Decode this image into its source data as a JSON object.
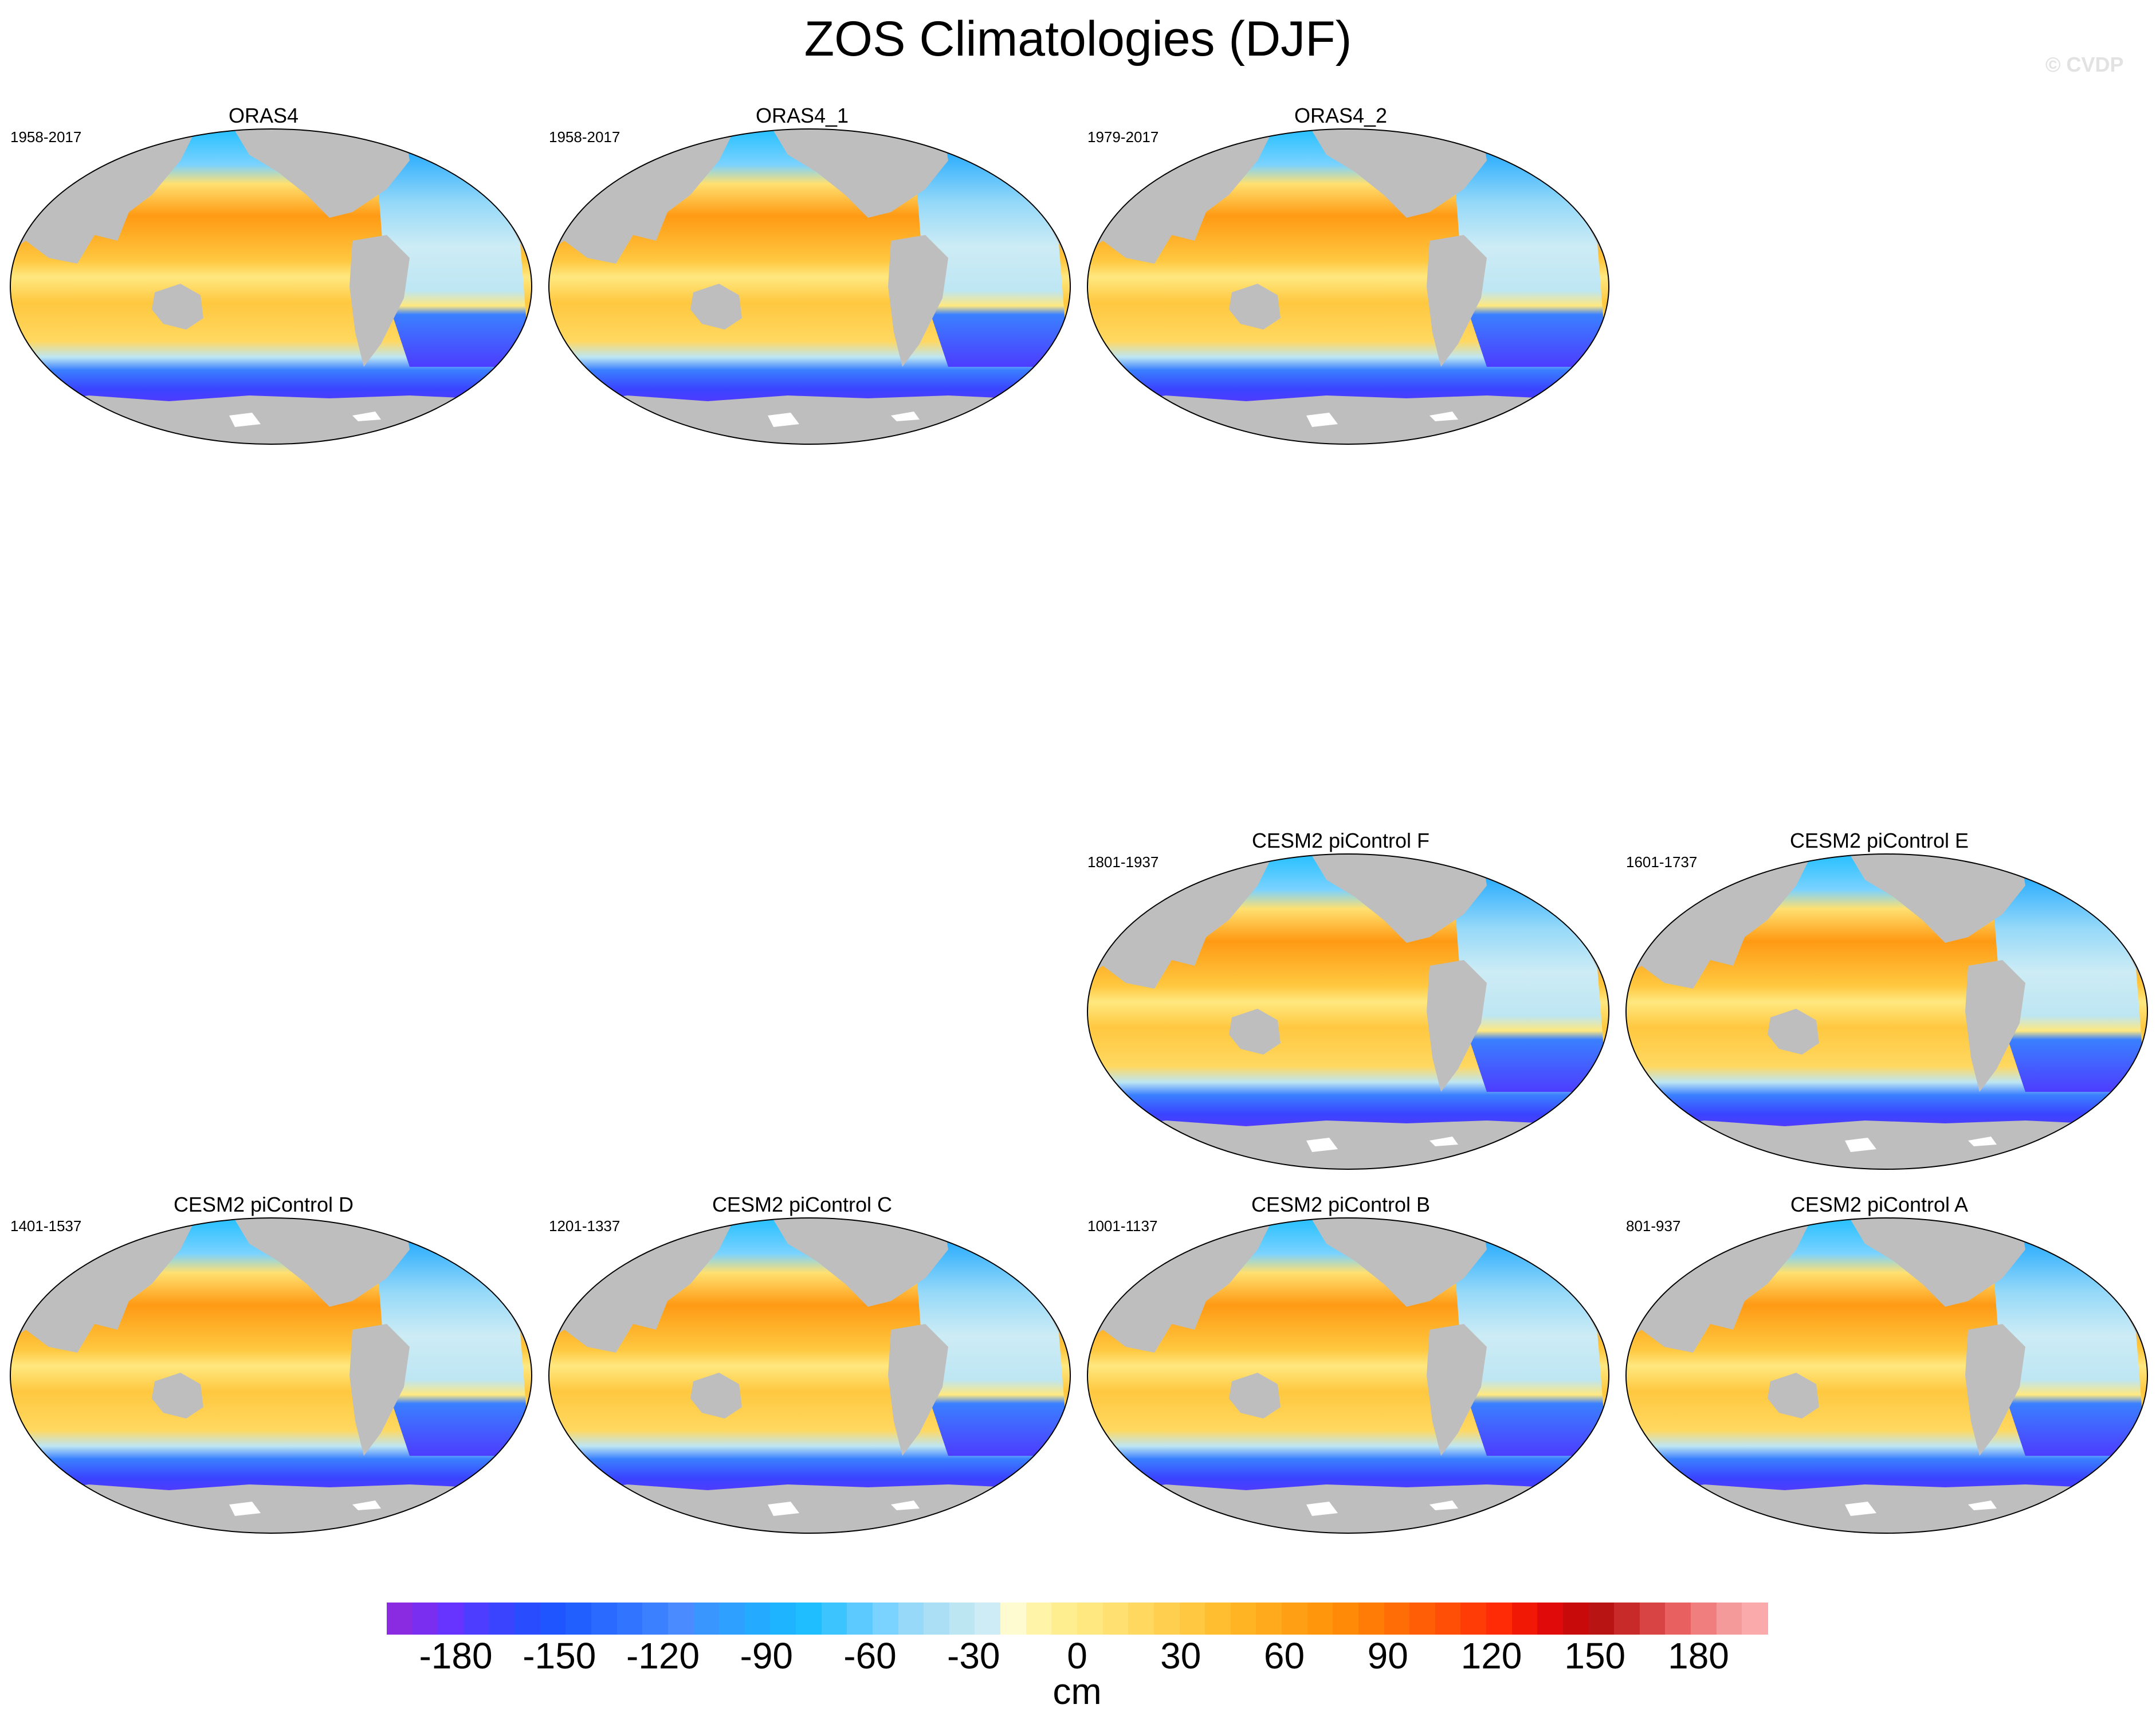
{
  "title": "ZOS Climatologies (DJF)",
  "credit": "© CVDP",
  "panels": [
    {
      "name": "ORAS4",
      "years": "1958-2017"
    },
    {
      "name": "ORAS4_1",
      "years": "1958-2017"
    },
    {
      "name": "ORAS4_2",
      "years": "1979-2017"
    },
    {
      "name": "CESM2 piControl F",
      "years": "1801-1937"
    },
    {
      "name": "CESM2 piControl E",
      "years": "1601-1737"
    },
    {
      "name": "CESM2 piControl D",
      "years": "1401-1537"
    },
    {
      "name": "CESM2 piControl C",
      "years": "1201-1337"
    },
    {
      "name": "CESM2 piControl B",
      "years": "1001-1137"
    },
    {
      "name": "CESM2 piControl A",
      "years": "801-937"
    }
  ],
  "colorbar": {
    "units": "cm",
    "min": -200,
    "max": 200,
    "ticks": [
      "-180",
      "-150",
      "-120",
      "-90",
      "-60",
      "-30",
      "0",
      "30",
      "60",
      "90",
      "120",
      "150",
      "180"
    ],
    "colors": [
      "#8a2be2",
      "#7a2ff0",
      "#6633ff",
      "#4d3dff",
      "#3a44ff",
      "#2a4cff",
      "#1e55ff",
      "#225fff",
      "#2a6aff",
      "#3074ff",
      "#3a80ff",
      "#4a8cff",
      "#3a96ff",
      "#2ea0ff",
      "#24aaff",
      "#1eb4ff",
      "#1ebeff",
      "#3cc4ff",
      "#5ccaff",
      "#7ad2ff",
      "#96d9f8",
      "#aadff5",
      "#bde6f3",
      "#cdecf5",
      "#fffbd0",
      "#fff4a8",
      "#ffee90",
      "#ffe880",
      "#ffe070",
      "#ffd860",
      "#ffd050",
      "#ffc840",
      "#ffbe30",
      "#ffb424",
      "#ffaa1c",
      "#ffa014",
      "#ff960c",
      "#ff8a08",
      "#ff7c06",
      "#ff6e06",
      "#ff5e06",
      "#ff4e06",
      "#ff3c06",
      "#ff2a06",
      "#f21806",
      "#e00a0a",
      "#c80a0a",
      "#b81414",
      "#c82a2a",
      "#d84444",
      "#e86060",
      "#f07e7e",
      "#f59a9a",
      "#faaaaa"
    ]
  },
  "palette": {
    "land": "#bebebe",
    "antarctica": "#ffffff"
  }
}
